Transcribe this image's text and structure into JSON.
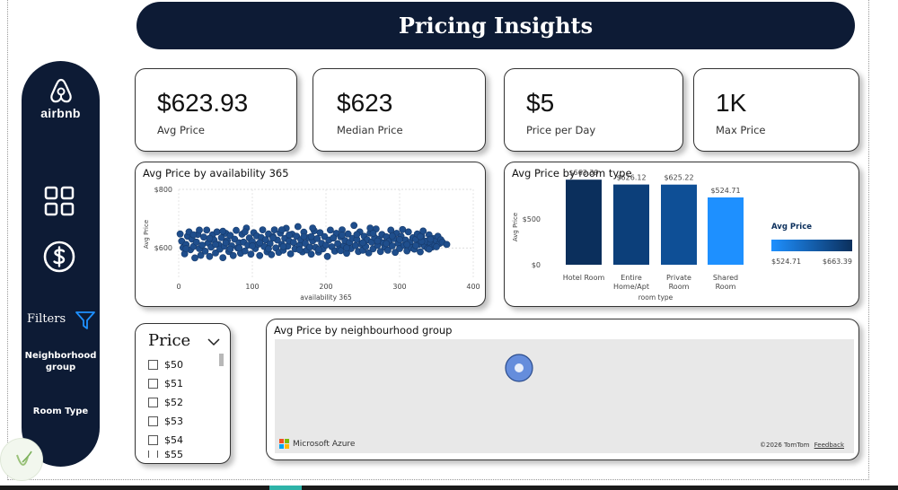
{
  "header": {
    "title": "Pricing Insights"
  },
  "sidebar": {
    "logo_text": "airbnb",
    "filters_label": "Filters",
    "links": [
      "Neighborhood group",
      "Room Type"
    ]
  },
  "kpis": [
    {
      "value": "$623.93",
      "label": "Avg Price"
    },
    {
      "value": "$623",
      "label": "Median Price"
    },
    {
      "value": "$5",
      "label": "Price per Day"
    },
    {
      "value": "1K",
      "label": "Max Price"
    }
  ],
  "scatter": {
    "title": "Avg Price by availability 365",
    "xlabel": "availability 365",
    "ylabel": "Avg Price",
    "xticks": [
      "0",
      "100",
      "200",
      "300",
      "400"
    ],
    "yticks": [
      "$800",
      "$600"
    ]
  },
  "bar": {
    "title": "Avg Price by room type",
    "xlabel": "room type",
    "ylabel": "Avg Price",
    "yticks": [
      "$500",
      "$0"
    ],
    "legend_title": "Avg Price",
    "legend_min": "$524.71",
    "legend_max": "$663.39"
  },
  "price_slicer": {
    "title": "Price",
    "options": [
      "$50",
      "$51",
      "$52",
      "$53",
      "$54",
      "$55"
    ]
  },
  "map": {
    "title": "Avg Price by neighbourhood group",
    "brand": "Microsoft Azure",
    "copyright": "©2026 TomTom",
    "feedback": "Feedback"
  },
  "colors": {
    "navy": "#0d1b35",
    "dot": "#1f4e8c",
    "bar_dark": "#0b2f5c",
    "bar_light": "#1e90ff",
    "map_dot": "#2f6fe0"
  },
  "chart_data": [
    {
      "type": "scatter",
      "title": "Avg Price by availability 365",
      "xlabel": "availability 365",
      "ylabel": "Avg Price",
      "xlim": [
        0,
        400
      ],
      "ylim": [
        500,
        800
      ],
      "y_unit": "$",
      "points": [
        [
          2,
          648
        ],
        [
          4,
          623
        ],
        [
          6,
          601
        ],
        [
          8,
          580
        ],
        [
          10,
          612
        ],
        [
          12,
          640
        ],
        [
          14,
          655
        ],
        [
          16,
          594
        ],
        [
          18,
          630
        ],
        [
          20,
          605
        ],
        [
          22,
          566
        ],
        [
          24,
          620
        ],
        [
          26,
          646
        ],
        [
          28,
          598
        ],
        [
          30,
          575
        ],
        [
          32,
          610
        ],
        [
          34,
          637
        ],
        [
          36,
          589
        ],
        [
          38,
          661
        ],
        [
          40,
          617
        ],
        [
          42,
          571
        ],
        [
          44,
          603
        ],
        [
          46,
          645
        ],
        [
          48,
          627
        ],
        [
          50,
          583
        ],
        [
          52,
          655
        ],
        [
          54,
          612
        ],
        [
          56,
          596
        ],
        [
          58,
          635
        ],
        [
          60,
          567
        ],
        [
          62,
          606
        ],
        [
          64,
          650
        ],
        [
          66,
          625
        ],
        [
          68,
          588
        ],
        [
          70,
          643
        ],
        [
          72,
          607
        ],
        [
          74,
          574
        ],
        [
          76,
          630
        ],
        [
          78,
          660
        ],
        [
          80,
          600
        ],
        [
          82,
          618
        ],
        [
          84,
          582
        ],
        [
          86,
          647
        ],
        [
          88,
          620
        ],
        [
          90,
          590
        ],
        [
          92,
          668
        ],
        [
          94,
          610
        ],
        [
          96,
          634
        ],
        [
          98,
          579
        ],
        [
          100,
          622
        ],
        [
          102,
          652
        ],
        [
          104,
          598
        ],
        [
          106,
          641
        ],
        [
          108,
          613
        ],
        [
          110,
          574
        ],
        [
          112,
          636
        ],
        [
          114,
          662
        ],
        [
          116,
          605
        ],
        [
          118,
          628
        ],
        [
          120,
          587
        ],
        [
          122,
          648
        ],
        [
          124,
          615
        ],
        [
          126,
          577
        ],
        [
          128,
          639
        ],
        [
          130,
          662
        ],
        [
          132,
          600
        ],
        [
          134,
          627
        ],
        [
          136,
          585
        ],
        [
          138,
          651
        ],
        [
          140,
          612
        ],
        [
          142,
          592
        ],
        [
          144,
          633
        ],
        [
          146,
          667
        ],
        [
          148,
          606
        ],
        [
          150,
          624
        ],
        [
          152,
          580
        ],
        [
          154,
          647
        ],
        [
          156,
          619
        ],
        [
          158,
          597
        ],
        [
          160,
          640
        ],
        [
          162,
          673
        ],
        [
          164,
          609
        ],
        [
          166,
          628
        ],
        [
          168,
          587
        ],
        [
          170,
          654
        ],
        [
          172,
          616
        ],
        [
          174,
          593
        ],
        [
          176,
          635
        ],
        [
          178,
          603
        ],
        [
          180,
          579
        ],
        [
          182,
          624
        ],
        [
          184,
          659
        ],
        [
          186,
          602
        ],
        [
          188,
          632
        ],
        [
          190,
          586
        ],
        [
          192,
          652
        ],
        [
          194,
          616
        ],
        [
          196,
          597
        ],
        [
          198,
          639
        ],
        [
          200,
          610
        ],
        [
          202,
          571
        ],
        [
          204,
          627
        ],
        [
          206,
          661
        ],
        [
          208,
          604
        ],
        [
          210,
          634
        ],
        [
          212,
          589
        ],
        [
          214,
          650
        ],
        [
          216,
          615
        ],
        [
          218,
          596
        ],
        [
          220,
          638
        ],
        [
          222,
          662
        ],
        [
          224,
          607
        ],
        [
          226,
          625
        ],
        [
          228,
          582
        ],
        [
          230,
          648
        ],
        [
          232,
          619
        ],
        [
          234,
          598
        ],
        [
          236,
          633
        ],
        [
          238,
          677
        ],
        [
          240,
          608
        ],
        [
          242,
          629
        ],
        [
          244,
          588
        ],
        [
          246,
          655
        ],
        [
          248,
          613
        ],
        [
          250,
          592
        ],
        [
          252,
          640
        ],
        [
          254,
          605
        ],
        [
          256,
          628
        ],
        [
          258,
          583
        ],
        [
          260,
          651
        ],
        [
          262,
          620
        ],
        [
          264,
          597
        ],
        [
          266,
          636
        ],
        [
          268,
          665
        ],
        [
          270,
          609
        ],
        [
          272,
          630
        ],
        [
          274,
          588
        ],
        [
          276,
          646
        ],
        [
          278,
          617
        ],
        [
          280,
          603
        ],
        [
          282,
          638
        ],
        [
          284,
          592
        ],
        [
          286,
          624
        ],
        [
          288,
          661
        ],
        [
          290,
          607
        ],
        [
          292,
          632
        ],
        [
          294,
          585
        ],
        [
          296,
          650
        ],
        [
          298,
          616
        ],
        [
          300,
          598
        ],
        [
          302,
          640
        ],
        [
          304,
          663
        ],
        [
          306,
          609
        ],
        [
          308,
          627
        ],
        [
          310,
          590
        ],
        [
          312,
          655
        ],
        [
          314,
          619
        ],
        [
          316,
          601
        ],
        [
          318,
          635
        ],
        [
          320,
          596
        ],
        [
          322,
          630
        ],
        [
          324,
          648
        ],
        [
          326,
          612
        ],
        [
          328,
          587
        ],
        [
          330,
          640
        ],
        [
          332,
          658
        ],
        [
          334,
          606
        ],
        [
          336,
          623
        ],
        [
          338,
          599
        ],
        [
          340,
          645
        ],
        [
          342,
          618
        ],
        [
          344,
          603
        ],
        [
          346,
          632
        ],
        [
          348,
          610
        ],
        [
          350,
          625
        ],
        [
          352,
          640
        ],
        [
          354,
          615
        ],
        [
          356,
          628
        ],
        [
          358,
          620
        ],
        [
          20,
          645
        ],
        [
          60,
          657
        ],
        [
          100,
          607
        ],
        [
          140,
          662
        ],
        [
          180,
          639
        ],
        [
          220,
          591
        ],
        [
          260,
          668
        ],
        [
          300,
          629
        ],
        [
          340,
          596
        ],
        [
          50,
          612
        ],
        [
          150,
          645
        ],
        [
          250,
          618
        ],
        [
          350,
          604
        ],
        [
          90,
          655
        ],
        [
          190,
          595
        ],
        [
          290,
          641
        ],
        [
          330,
          622
        ],
        [
          10,
          598
        ],
        [
          110,
          618
        ],
        [
          210,
          634
        ],
        [
          310,
          612
        ],
        [
          70,
          596
        ],
        [
          170,
          639
        ],
        [
          270,
          624
        ],
        [
          42,
          633
        ],
        [
          142,
          605
        ],
        [
          242,
          646
        ],
        [
          342,
          630
        ],
        [
          82,
          600
        ],
        [
          182,
          668
        ],
        [
          282,
          615
        ],
        [
          122,
          597
        ],
        [
          222,
          644
        ],
        [
          322,
          608
        ],
        [
          28,
          661
        ],
        [
          128,
          634
        ],
        [
          228,
          600
        ],
        [
          328,
          639
        ],
        [
          64,
          618
        ],
        [
          164,
          594
        ],
        [
          264,
          650
        ],
        [
          364,
          612
        ]
      ]
    },
    {
      "type": "bar",
      "title": "Avg Price by room type",
      "xlabel": "room type",
      "ylabel": "Avg Price",
      "categories": [
        "Hotel Room",
        "Entire Home/Apt",
        "Private Room",
        "Shared Room"
      ],
      "values": [
        663.39,
        626.12,
        625.22,
        524.71
      ],
      "data_labels": [
        "$663.39",
        "$626.12",
        "$625.22",
        "$524.71"
      ],
      "ylim": [
        0,
        700
      ],
      "yticks": [
        0,
        500
      ],
      "legend": {
        "title": "Avg Price",
        "min": 524.71,
        "max": 663.39,
        "position": "right"
      }
    }
  ]
}
